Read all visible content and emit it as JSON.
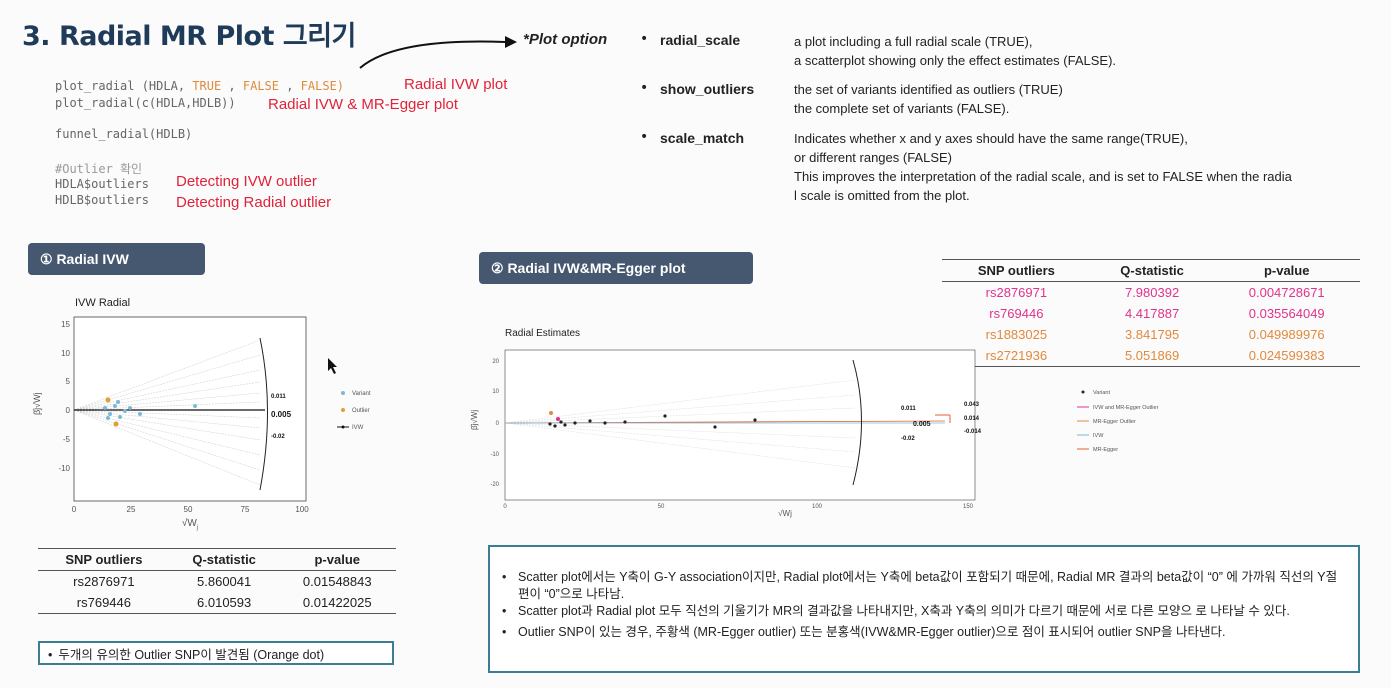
{
  "title": "3. Radial MR Plot 그리기",
  "code": {
    "line1_pre": "plot_radial (HDLA,",
    "line1_true": " TRUE ",
    "line1_comma1": ",",
    "line1_false1": " FALSE ",
    "line1_comma2": ",",
    "line1_false2": " FALSE)",
    "line1_note": "Radial IVW plot",
    "line2": "plot_radial(c(HDLA,HDLB))",
    "line2_note": "Radial IVW & MR-Egger plot",
    "line3": "funnel_radial(HDLB)",
    "line4": "#Outlier 확인",
    "line5": "HDLA$outliers",
    "line5_note": "Detecting IVW outlier",
    "line6": "HDLB$outliers",
    "line6_note": "Detecting Radial outlier"
  },
  "options": {
    "heading": "*Plot option",
    "items": [
      {
        "name": "radial_scale",
        "desc1": "a plot including a full radial scale (TRUE),",
        "desc2": "a scatterplot showing only the effect estimates (FALSE)."
      },
      {
        "name": "show_outliers",
        "desc1": "the set of variants identified as outliers (TRUE)",
        "desc2": "the complete set of variants (FALSE)."
      },
      {
        "name": "scale_match",
        "desc1": "Indicates whether x and y axes should have the same range(TRUE),",
        "desc2": "or different ranges (FALSE)",
        "desc3": "This improves the interpretation of the radial scale, and is set to FALSE when the radia",
        "desc4": "l scale is omitted from the plot."
      }
    ]
  },
  "section1": {
    "pill": "① Radial IVW",
    "plot_title": "IVW Radial",
    "x_ticks": [
      "0",
      "25",
      "50",
      "75",
      "100"
    ],
    "y_ticks": [
      "15",
      "10",
      "5",
      "0",
      "-5",
      "-10"
    ],
    "annotations": [
      "0.011",
      "0.005",
      "-0.02"
    ],
    "legend": [
      "Variant",
      "Outlier",
      "IVW"
    ],
    "table": {
      "headers": [
        "SNP outliers",
        "Q-statistic",
        "p-value"
      ],
      "rows": [
        [
          "rs2876971",
          "5.860041",
          "0.01548843"
        ],
        [
          "rs769446",
          "6.010593",
          "0.01422025"
        ]
      ]
    },
    "note": "두개의 유의한 Outlier SNP이 발견됨 (Orange dot)"
  },
  "section2": {
    "pill": "② Radial IVW&MR-Egger plot",
    "plot_title": "Radial Estimates",
    "x_ticks": [
      "0",
      "50",
      "100",
      "150"
    ],
    "y_ticks": [
      "20",
      "10",
      "0",
      "-10",
      "-20"
    ],
    "annotations": [
      "0.043",
      "0.014",
      "-0.014",
      "0.011",
      "0.005",
      "-0.02"
    ],
    "legend": [
      "Variant",
      "IVW and MR-Egger Outlier",
      "MR-Egger Outlier",
      "IVW",
      "MR-Egger"
    ],
    "table": {
      "headers": [
        "SNP outliers",
        "Q-statistic",
        "p-value"
      ],
      "rows": [
        [
          "rs2876971",
          "7.980392",
          "0.004728671"
        ],
        [
          "rs769446",
          "4.417887",
          "0.035564049"
        ],
        [
          "rs1883025",
          "3.841795",
          "0.049989976"
        ],
        [
          "rs2721936",
          "5.051869",
          "0.024599383"
        ]
      ],
      "row_colors": [
        "#e0338a",
        "#e0338a",
        "#e08a3c",
        "#e08a3c"
      ]
    },
    "notes": [
      "Scatter plot에서는 Y축이 G-Y association이지만, Radial plot에서는 Y축에 beta값이 포함되기 때문에, Radial MR 결과의 beta값이 “0” 에 가까워 직선의 Y절편이 “0”으로 나타남.",
      "Scatter plot과 Radial plot 모두 직선의 기울기가 MR의 결과값을 나타내지만, X축과 Y축의 의미가 다르기 때문에 서로 다른 모양으 로 나타날 수 있다.",
      "Outlier SNP이 있는 경우, 주황색 (MR-Egger outlier) 또는 분홍색(IVW&MR-Egger outlier)으로 점이 표시되어 outlier SNP을 나타낸다."
    ]
  },
  "colors": {
    "accent": "#1f3b5a",
    "red": "#e0233a",
    "orange": "#e08a3c",
    "pink": "#e0338a",
    "pill": "#465870",
    "box_border": "#3b7e92"
  }
}
